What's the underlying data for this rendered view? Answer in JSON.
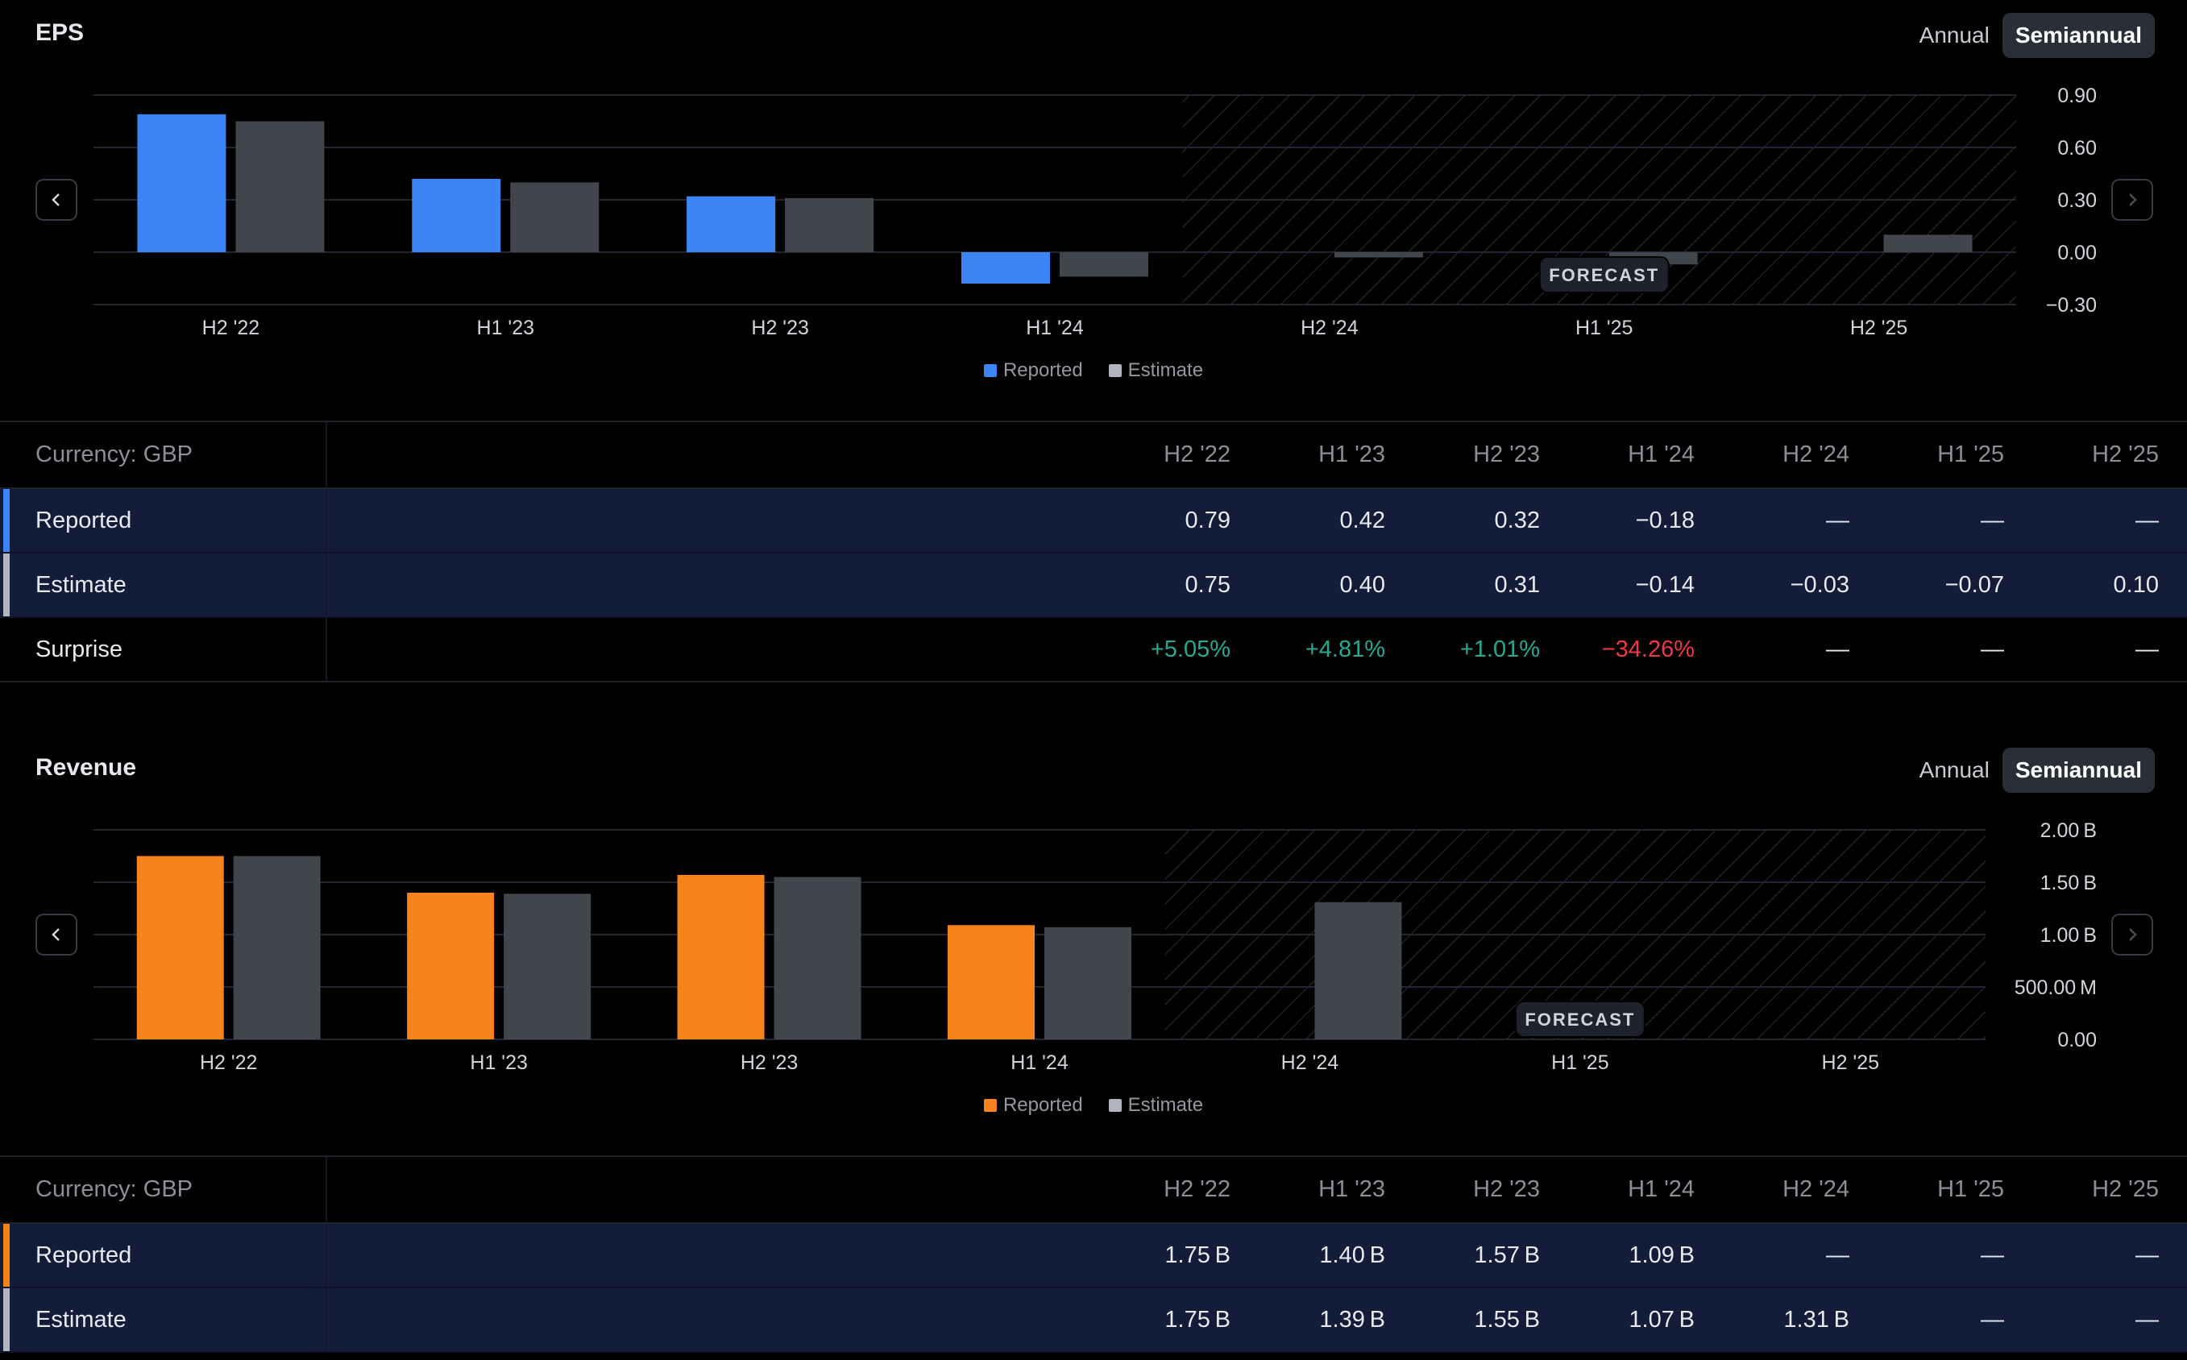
{
  "eps": {
    "title": "EPS",
    "toggle": {
      "annual": "Annual",
      "semiannual": "Semiannual"
    },
    "chart_data": {
      "type": "bar",
      "categories": [
        "H2 '22",
        "H1 '23",
        "H2 '23",
        "H1 '24",
        "H2 '24",
        "H1 '25",
        "H2 '25"
      ],
      "series": [
        {
          "name": "Reported",
          "color": "#3d85f7",
          "values": [
            0.79,
            0.42,
            0.32,
            -0.18,
            null,
            null,
            null
          ]
        },
        {
          "name": "Estimate",
          "color": "#43454d",
          "values": [
            0.75,
            0.4,
            0.31,
            -0.14,
            -0.03,
            -0.07,
            0.1
          ]
        }
      ],
      "yticks": [
        "0.90",
        "0.60",
        "0.30",
        "0.00",
        "−0.30"
      ],
      "ylim": [
        -0.3,
        0.9
      ],
      "forecast_label": "FORECAST",
      "forecast_from_index": 4
    },
    "legend": {
      "reported": "Reported",
      "estimate": "Estimate"
    },
    "table": {
      "currency": "Currency: GBP",
      "headers": [
        "H2 '22",
        "H1 '23",
        "H2 '23",
        "H1 '24",
        "H2 '24",
        "H1 '25",
        "H2 '25"
      ],
      "rows": [
        {
          "label": "Reported",
          "cells": [
            "0.79",
            "0.42",
            "0.32",
            "−0.18",
            "—",
            "—",
            "—"
          ]
        },
        {
          "label": "Estimate",
          "cells": [
            "0.75",
            "0.40",
            "0.31",
            "−0.14",
            "−0.03",
            "−0.07",
            "0.10"
          ]
        },
        {
          "label": "Surprise",
          "cells": [
            "+5.05%",
            "+4.81%",
            "+1.01%",
            "−34.26%",
            "—",
            "—",
            "—"
          ]
        }
      ]
    }
  },
  "revenue": {
    "title": "Revenue",
    "toggle": {
      "annual": "Annual",
      "semiannual": "Semiannual"
    },
    "chart_data": {
      "type": "bar",
      "categories": [
        "H2 '22",
        "H1 '23",
        "H2 '23",
        "H1 '24",
        "H2 '24",
        "H1 '25",
        "H2 '25"
      ],
      "series": [
        {
          "name": "Reported",
          "color": "#f7841a",
          "values": [
            1.75,
            1.4,
            1.57,
            1.09,
            null,
            null,
            null
          ]
        },
        {
          "name": "Estimate",
          "color": "#43454d",
          "values": [
            1.75,
            1.39,
            1.55,
            1.07,
            1.31,
            null,
            null
          ]
        }
      ],
      "unit": "B",
      "yticks": [
        "2.00 B",
        "1.50 B",
        "1.00 B",
        "500.00 M",
        "0.00"
      ],
      "ylim": [
        0,
        2.0
      ],
      "forecast_label": "FORECAST",
      "forecast_from_index": 4
    },
    "legend": {
      "reported": "Reported",
      "estimate": "Estimate"
    },
    "table": {
      "currency": "Currency: GBP",
      "headers": [
        "H2 '22",
        "H1 '23",
        "H2 '23",
        "H1 '24",
        "H2 '24",
        "H1 '25",
        "H2 '25"
      ],
      "rows": [
        {
          "label": "Reported",
          "cells": [
            "1.75 B",
            "1.40 B",
            "1.57 B",
            "1.09 B",
            "—",
            "—",
            "—"
          ]
        },
        {
          "label": "Estimate",
          "cells": [
            "1.75 B",
            "1.39 B",
            "1.55 B",
            "1.07 B",
            "1.31 B",
            "—",
            "—"
          ]
        }
      ]
    }
  }
}
